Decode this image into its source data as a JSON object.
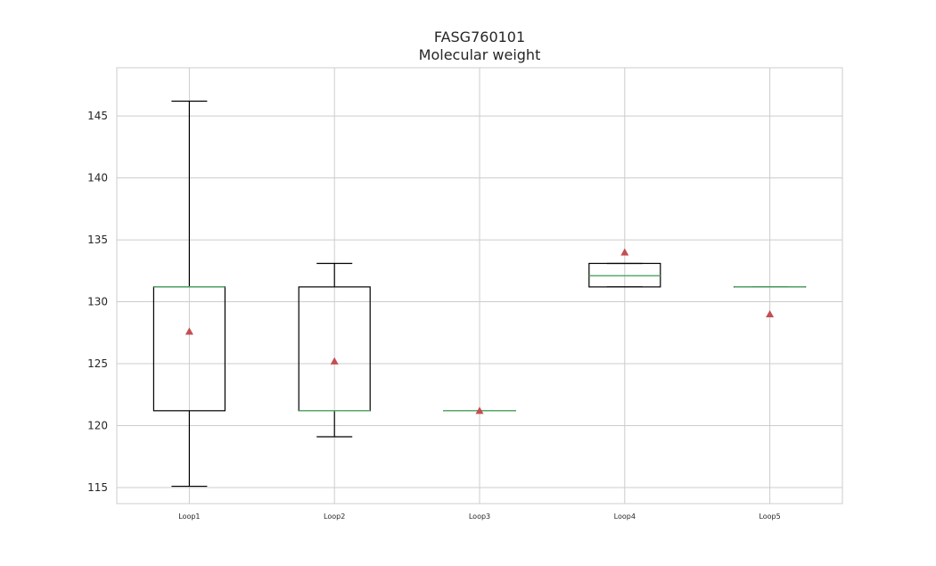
{
  "chart_data": {
    "type": "box",
    "title": "FASG760101",
    "subtitle": "Molecular weight",
    "xlabel": "",
    "ylabel": "",
    "ylim": [
      113.7,
      148.9
    ],
    "yticks": [
      115,
      120,
      125,
      130,
      135,
      140,
      145
    ],
    "grid": true,
    "categories": [
      "Loop1",
      "Loop2",
      "Loop3",
      "Loop4",
      "Loop5"
    ],
    "boxes": [
      {
        "whisker_low": 115.1,
        "q1": 121.2,
        "median": 131.2,
        "q3": 131.2,
        "whisker_high": 146.2,
        "mean": 127.6
      },
      {
        "whisker_low": 119.1,
        "q1": 121.2,
        "median": 121.2,
        "q3": 131.2,
        "whisker_high": 133.1,
        "mean": 125.2
      },
      {
        "whisker_low": 121.2,
        "q1": 121.2,
        "median": 121.2,
        "q3": 121.2,
        "whisker_high": 121.2,
        "mean": 121.2
      },
      {
        "whisker_low": 131.2,
        "q1": 131.2,
        "median": 132.1,
        "q3": 133.1,
        "whisker_high": 133.1,
        "mean": 134.0
      },
      {
        "whisker_low": 131.2,
        "q1": 131.2,
        "median": 131.2,
        "q3": 131.2,
        "whisker_high": 131.2,
        "mean": 129.0
      }
    ],
    "colors": {
      "box": "#000000",
      "median": "#55a868",
      "mean": "#c44e52",
      "grid": "#cccccc",
      "frame": "#cccccc"
    }
  }
}
